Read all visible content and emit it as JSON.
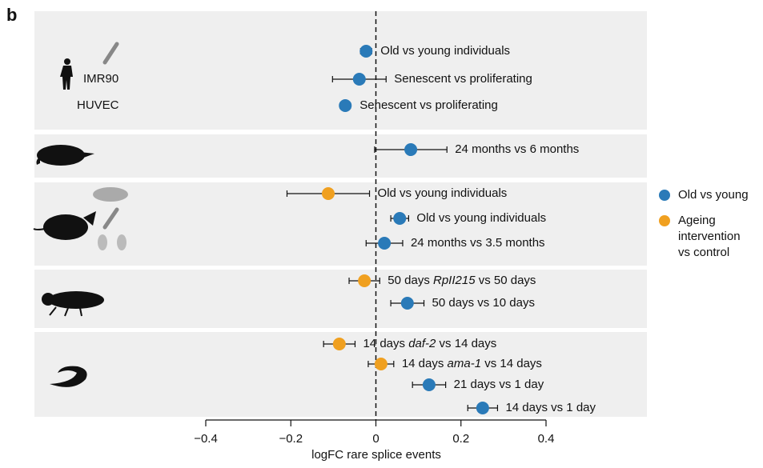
{
  "panel_label": "b",
  "chart_data": {
    "type": "forest",
    "xlabel": "logFC rare splice events",
    "xlim": [
      -0.4,
      0.4
    ],
    "xticks": [
      {
        "value": -0.4,
        "label": "−0.4"
      },
      {
        "value": -0.2,
        "label": "−0.2"
      },
      0,
      {
        "value": 0.2,
        "label": "0.2"
      },
      {
        "value": 0.4,
        "label": "0.4"
      }
    ],
    "series": [
      {
        "name": "Old vs young",
        "color": "#2a7ab8"
      },
      {
        "name": "Ageing intervention vs control",
        "color": "#f0a020"
      }
    ],
    "groups": [
      {
        "annotations": [
          "IMR90",
          "HUVEC"
        ],
        "rows": [
          {
            "label": [
              "Old vs young individuals"
            ],
            "value": -0.023,
            "error": 0.013,
            "series": 0
          },
          {
            "label": [
              "Senescent vs proliferating"
            ],
            "value": -0.039,
            "error": 0.063,
            "series": 0
          },
          {
            "label": [
              "Senescent vs proliferating"
            ],
            "value": -0.072,
            "error": 0.012,
            "series": 0
          }
        ]
      },
      {
        "annotations": [],
        "rows": [
          {
            "label": [
              "24 months vs 6 months"
            ],
            "value": 0.082,
            "error": 0.085,
            "series": 0
          }
        ]
      },
      {
        "annotations": [],
        "rows": [
          {
            "label": [
              "Old vs young individuals"
            ],
            "value": -0.112,
            "error": 0.097,
            "series": 1
          },
          {
            "label": [
              "Old vs young individuals"
            ],
            "value": 0.056,
            "error": 0.021,
            "series": 0
          },
          {
            "label": [
              "24 months vs 3.5 months"
            ],
            "value": 0.02,
            "error": 0.043,
            "series": 0
          }
        ]
      },
      {
        "annotations": [],
        "rows": [
          {
            "label": [
              "50 days ",
              "RpII215",
              " vs 50 days"
            ],
            "italic": 1,
            "value": -0.027,
            "error": 0.036,
            "series": 1
          },
          {
            "label": [
              "50 days vs 10 days"
            ],
            "value": 0.074,
            "error": 0.039,
            "series": 0
          }
        ]
      },
      {
        "annotations": [],
        "rows": [
          {
            "label": [
              "14 days ",
              "daf-2",
              " vs 14 days"
            ],
            "italic": 1,
            "value": -0.086,
            "error": 0.037,
            "series": 1
          },
          {
            "label": [
              "14 days ",
              "ama-1",
              " vs 14 days"
            ],
            "italic": 1,
            "value": 0.012,
            "error": 0.03,
            "series": 1
          },
          {
            "label": [
              "21 days vs 1 day"
            ],
            "value": 0.125,
            "error": 0.039,
            "series": 0
          },
          {
            "label": [
              "14 days vs 1 day"
            ],
            "value": 0.251,
            "error": 0.035,
            "series": 0
          }
        ]
      }
    ]
  }
}
